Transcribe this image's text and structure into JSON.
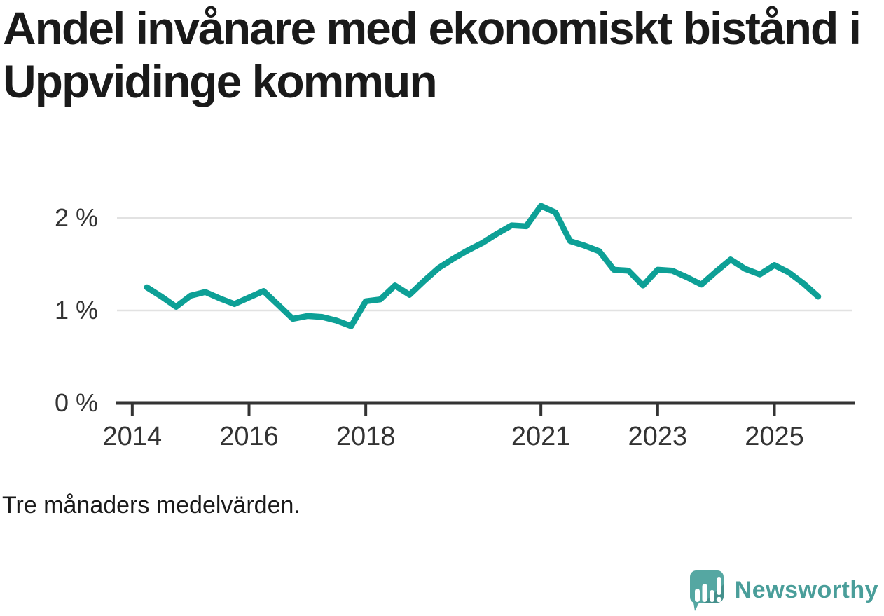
{
  "header": {
    "title": "Andel invånare med ekonomiskt bistånd i Uppvidinge kommun"
  },
  "chart_data": {
    "type": "line",
    "title": "Andel invånare med ekonomiskt bistånd i Uppvidinge kommun",
    "note": "Tre månaders medelvärden.",
    "unit": "%",
    "series_name": "Andel invånare med ekonomiskt bistånd",
    "x_description": "Quarterly points (3-month averages), decimal years",
    "x": [
      2014.25,
      2014.5,
      2014.75,
      2015.0,
      2015.25,
      2015.5,
      2015.75,
      2016.0,
      2016.25,
      2016.5,
      2016.75,
      2017.0,
      2017.25,
      2017.5,
      2017.75,
      2018.0,
      2018.25,
      2018.5,
      2018.75,
      2019.0,
      2019.25,
      2019.5,
      2019.75,
      2020.0,
      2020.25,
      2020.5,
      2020.75,
      2021.0,
      2021.25,
      2021.5,
      2021.75,
      2022.0,
      2022.25,
      2022.5,
      2022.75,
      2023.0,
      2023.25,
      2023.5,
      2023.75,
      2024.0,
      2024.25,
      2024.5,
      2024.75,
      2025.0,
      2025.25,
      2025.5,
      2025.75
    ],
    "values": [
      1.25,
      1.15,
      1.04,
      1.16,
      1.2,
      1.13,
      1.07,
      1.14,
      1.21,
      1.06,
      0.91,
      0.94,
      0.93,
      0.89,
      0.83,
      1.1,
      1.12,
      1.27,
      1.17,
      1.32,
      1.46,
      1.56,
      1.65,
      1.73,
      1.83,
      1.92,
      1.91,
      2.13,
      2.06,
      1.75,
      1.7,
      1.64,
      1.44,
      1.43,
      1.27,
      1.44,
      1.43,
      1.36,
      1.28,
      1.42,
      1.55,
      1.45,
      1.39,
      1.49,
      1.41,
      1.29,
      1.15
    ],
    "xlim": [
      2013.75,
      2026.35
    ],
    "ylim": [
      0,
      2.3
    ],
    "xtick_values": [
      2014,
      2016,
      2018,
      2021,
      2023,
      2025
    ],
    "xtick_labels": [
      "2014",
      "2016",
      "2018",
      "2021",
      "2023",
      "2025"
    ],
    "ytick_values": [
      0,
      1,
      2
    ],
    "ytick_labels": [
      "0 %",
      "1 %",
      "2 %"
    ],
    "grid": "horizontal gridlines at 1% and 2%",
    "legend": "none",
    "line_color": "#0da096",
    "grid_color": "#e2e2e2",
    "axis_color": "#333333"
  },
  "footer": {
    "note": "Tre månaders medelvärden.",
    "brand": "Newsworthy",
    "brand_color": "#4a9e9a",
    "logo_icon": "speech-bubble-bar-chart-exclamation"
  }
}
